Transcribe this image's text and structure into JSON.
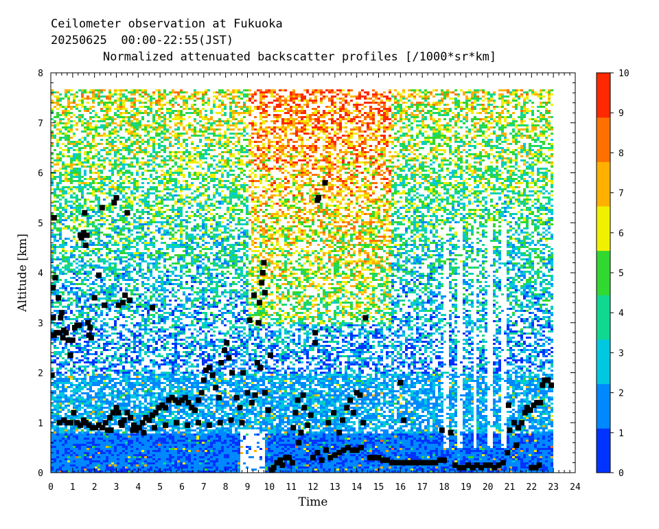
{
  "header": {
    "line1": "Ceilometer observation at Fukuoka",
    "line2": "20250625  00:00-22:55(JST)",
    "line3": "Normalized attenuated backscatter profiles [/1000*sr*km]"
  },
  "chart_data": {
    "type": "heatmap",
    "title": "Normalized attenuated backscatter profiles [/1000*sr*km]",
    "xlabel": "Time",
    "ylabel": "Altitude [km]",
    "xlim": [
      0,
      24
    ],
    "ylim": [
      0,
      8
    ],
    "x_ticks": [
      "0",
      "1",
      "2",
      "3",
      "4",
      "5",
      "6",
      "7",
      "8",
      "9",
      "10",
      "11",
      "12",
      "13",
      "14",
      "15",
      "16",
      "17",
      "18",
      "19",
      "20",
      "21",
      "22",
      "23",
      "24"
    ],
    "y_ticks": [
      "0",
      "1",
      "2",
      "3",
      "4",
      "5",
      "6",
      "7",
      "8"
    ],
    "data_time_range": [
      0,
      22.92
    ],
    "data_altitude_top": 7.67,
    "colorbar": {
      "range": [
        0,
        10
      ],
      "ticks": [
        "0",
        "1",
        "2",
        "3",
        "4",
        "5",
        "6",
        "7",
        "8",
        "9",
        "10"
      ],
      "colors": [
        "#0033ff",
        "#0088ff",
        "#00c8e0",
        "#10d890",
        "#30d830",
        "#f0f000",
        "#ffb000",
        "#ff7000",
        "#ff2800"
      ]
    },
    "cloud_base_markers": [
      [
        0.05,
        1.95
      ],
      [
        0.1,
        3.1
      ],
      [
        0.1,
        3.7
      ],
      [
        0.15,
        5.1
      ],
      [
        0.2,
        3.9
      ],
      [
        0.15,
        2.75
      ],
      [
        0.25,
        2.8
      ],
      [
        0.35,
        3.5
      ],
      [
        0.4,
        2.8
      ],
      [
        0.45,
        3.1
      ],
      [
        0.5,
        3.2
      ],
      [
        0.55,
        2.7
      ],
      [
        0.6,
        2.85
      ],
      [
        0.7,
        2.8
      ],
      [
        0.8,
        2.65
      ],
      [
        0.9,
        2.35
      ],
      [
        1.0,
        2.65
      ],
      [
        1.1,
        2.9
      ],
      [
        1.2,
        2.95
      ],
      [
        1.3,
        2.95
      ],
      [
        1.35,
        4.75
      ],
      [
        1.4,
        4.7
      ],
      [
        1.5,
        4.8
      ],
      [
        1.55,
        5.2
      ],
      [
        1.6,
        4.55
      ],
      [
        1.65,
        4.75
      ],
      [
        1.7,
        3.0
      ],
      [
        1.75,
        2.75
      ],
      [
        1.8,
        2.9
      ],
      [
        1.85,
        2.7
      ],
      [
        2.0,
        3.5
      ],
      [
        2.2,
        3.95
      ],
      [
        2.35,
        5.3
      ],
      [
        2.45,
        3.35
      ],
      [
        2.9,
        5.4
      ],
      [
        3.0,
        5.5
      ],
      [
        3.1,
        3.35
      ],
      [
        3.3,
        3.4
      ],
      [
        3.4,
        3.55
      ],
      [
        3.5,
        5.2
      ],
      [
        3.6,
        3.45
      ],
      [
        4.65,
        3.3
      ],
      [
        14.4,
        3.1
      ],
      [
        12.1,
        2.6
      ],
      [
        12.1,
        2.8
      ],
      [
        12.2,
        5.45
      ],
      [
        12.25,
        5.5
      ],
      [
        12.55,
        5.8
      ],
      [
        9.1,
        3.05
      ],
      [
        9.3,
        3.55
      ],
      [
        9.5,
        3.0
      ],
      [
        9.55,
        3.4
      ],
      [
        9.65,
        3.8
      ],
      [
        9.7,
        4.0
      ],
      [
        9.75,
        4.2
      ],
      [
        9.8,
        3.6
      ],
      [
        10.05,
        2.35
      ],
      [
        0.4,
        1.0
      ],
      [
        0.6,
        1.05
      ],
      [
        0.75,
        1.0
      ],
      [
        0.9,
        1.0
      ],
      [
        1.05,
        1.2
      ],
      [
        1.2,
        1.0
      ],
      [
        1.35,
        0.95
      ],
      [
        1.5,
        1.05
      ],
      [
        1.6,
        1.0
      ],
      [
        1.75,
        0.95
      ],
      [
        1.9,
        0.9
      ],
      [
        2.05,
        0.9
      ],
      [
        2.2,
        0.95
      ],
      [
        2.35,
        0.9
      ],
      [
        2.5,
        1.0
      ],
      [
        2.6,
        0.85
      ],
      [
        2.7,
        1.1
      ],
      [
        2.85,
        1.2
      ],
      [
        3.0,
        1.3
      ],
      [
        3.1,
        1.2
      ],
      [
        3.2,
        1.0
      ],
      [
        3.35,
        1.05
      ],
      [
        3.5,
        1.2
      ],
      [
        3.65,
        1.1
      ],
      [
        3.8,
        0.95
      ],
      [
        3.9,
        0.85
      ],
      [
        4.05,
        0.9
      ],
      [
        4.2,
        1.0
      ],
      [
        4.35,
        1.1
      ],
      [
        4.5,
        1.05
      ],
      [
        4.65,
        1.15
      ],
      [
        4.8,
        1.2
      ],
      [
        4.95,
        1.3
      ],
      [
        5.1,
        1.35
      ],
      [
        5.25,
        1.3
      ],
      [
        5.4,
        1.45
      ],
      [
        5.55,
        1.5
      ],
      [
        5.7,
        1.45
      ],
      [
        5.85,
        1.4
      ],
      [
        6.0,
        1.45
      ],
      [
        6.15,
        1.5
      ],
      [
        6.3,
        1.4
      ],
      [
        6.45,
        1.3
      ],
      [
        6.6,
        1.25
      ],
      [
        6.75,
        1.45
      ],
      [
        6.9,
        1.6
      ],
      [
        7.0,
        1.85
      ],
      [
        7.1,
        2.05
      ],
      [
        7.25,
        2.1
      ],
      [
        7.4,
        1.95
      ],
      [
        7.55,
        1.7
      ],
      [
        7.7,
        1.5
      ],
      [
        7.8,
        2.2
      ],
      [
        7.95,
        2.45
      ],
      [
        8.05,
        2.6
      ],
      [
        8.15,
        2.3
      ],
      [
        8.3,
        2.0
      ],
      [
        8.5,
        1.5
      ],
      [
        8.65,
        1.3
      ],
      [
        8.8,
        2.0
      ],
      [
        9.0,
        1.6
      ],
      [
        9.2,
        1.4
      ],
      [
        9.35,
        1.55
      ],
      [
        9.45,
        2.2
      ],
      [
        9.6,
        2.1
      ],
      [
        9.8,
        1.6
      ],
      [
        9.95,
        1.25
      ],
      [
        2.75,
        0.85
      ],
      [
        3.25,
        0.95
      ],
      [
        3.75,
        0.85
      ],
      [
        4.25,
        0.8
      ],
      [
        4.75,
        0.9
      ],
      [
        5.25,
        0.95
      ],
      [
        5.75,
        1.0
      ],
      [
        6.25,
        0.95
      ],
      [
        6.75,
        1.0
      ],
      [
        7.25,
        0.95
      ],
      [
        7.75,
        1.0
      ],
      [
        8.25,
        1.05
      ],
      [
        8.75,
        1.0
      ],
      [
        10.1,
        0.05
      ],
      [
        10.2,
        0.1
      ],
      [
        10.35,
        0.2
      ],
      [
        10.5,
        0.25
      ],
      [
        10.6,
        0.15
      ],
      [
        10.75,
        0.3
      ],
      [
        10.9,
        0.3
      ],
      [
        11.05,
        0.2
      ],
      [
        11.1,
        0.9
      ],
      [
        11.2,
        1.2
      ],
      [
        11.3,
        1.45
      ],
      [
        11.35,
        0.6
      ],
      [
        11.45,
        0.8
      ],
      [
        11.55,
        1.55
      ],
      [
        11.6,
        1.3
      ],
      [
        11.75,
        0.95
      ],
      [
        11.9,
        1.15
      ],
      [
        12.0,
        0.3
      ],
      [
        12.2,
        0.4
      ],
      [
        12.4,
        0.25
      ],
      [
        12.6,
        0.45
      ],
      [
        12.8,
        0.3
      ],
      [
        13.0,
        0.35
      ],
      [
        13.2,
        0.4
      ],
      [
        13.4,
        0.45
      ],
      [
        13.6,
        0.5
      ],
      [
        13.8,
        0.45
      ],
      [
        14.0,
        0.45
      ],
      [
        14.2,
        0.5
      ],
      [
        12.7,
        1.0
      ],
      [
        12.95,
        1.2
      ],
      [
        13.2,
        0.8
      ],
      [
        13.35,
        1.05
      ],
      [
        13.55,
        1.3
      ],
      [
        13.7,
        1.45
      ],
      [
        13.85,
        1.2
      ],
      [
        14.0,
        1.6
      ],
      [
        14.15,
        1.55
      ],
      [
        14.3,
        1.0
      ],
      [
        14.6,
        0.3
      ],
      [
        14.8,
        0.3
      ],
      [
        15.0,
        0.3
      ],
      [
        15.2,
        0.25
      ],
      [
        15.4,
        0.25
      ],
      [
        15.6,
        0.2
      ],
      [
        15.8,
        0.2
      ],
      [
        16.0,
        0.2
      ],
      [
        16.2,
        0.2
      ],
      [
        16.4,
        0.2
      ],
      [
        16.6,
        0.2
      ],
      [
        16.8,
        0.2
      ],
      [
        17.0,
        0.2
      ],
      [
        17.2,
        0.2
      ],
      [
        17.4,
        0.2
      ],
      [
        17.6,
        0.2
      ],
      [
        17.8,
        0.25
      ],
      [
        18.0,
        0.25
      ],
      [
        16.0,
        1.8
      ],
      [
        16.15,
        1.05
      ],
      [
        17.9,
        0.85
      ],
      [
        18.3,
        0.8
      ],
      [
        18.5,
        0.15
      ],
      [
        18.7,
        0.1
      ],
      [
        18.9,
        0.1
      ],
      [
        19.1,
        0.15
      ],
      [
        19.3,
        0.1
      ],
      [
        19.5,
        0.15
      ],
      [
        19.7,
        0.1
      ],
      [
        19.9,
        0.15
      ],
      [
        20.1,
        0.15
      ],
      [
        20.3,
        0.1
      ],
      [
        20.5,
        0.15
      ],
      [
        20.7,
        0.2
      ],
      [
        20.9,
        0.4
      ],
      [
        21.0,
        0.85
      ],
      [
        21.2,
        1.0
      ],
      [
        21.4,
        0.9
      ],
      [
        21.55,
        1.0
      ],
      [
        21.7,
        1.2
      ],
      [
        21.8,
        1.3
      ],
      [
        21.95,
        1.25
      ],
      [
        22.1,
        1.35
      ],
      [
        22.25,
        1.4
      ],
      [
        22.4,
        1.4
      ],
      [
        22.5,
        1.75
      ],
      [
        22.6,
        1.85
      ],
      [
        22.75,
        1.85
      ],
      [
        22.9,
        1.75
      ],
      [
        20.95,
        1.35
      ],
      [
        21.3,
        0.55
      ],
      [
        22.0,
        0.1
      ],
      [
        22.2,
        0.1
      ],
      [
        22.35,
        0.15
      ]
    ]
  }
}
